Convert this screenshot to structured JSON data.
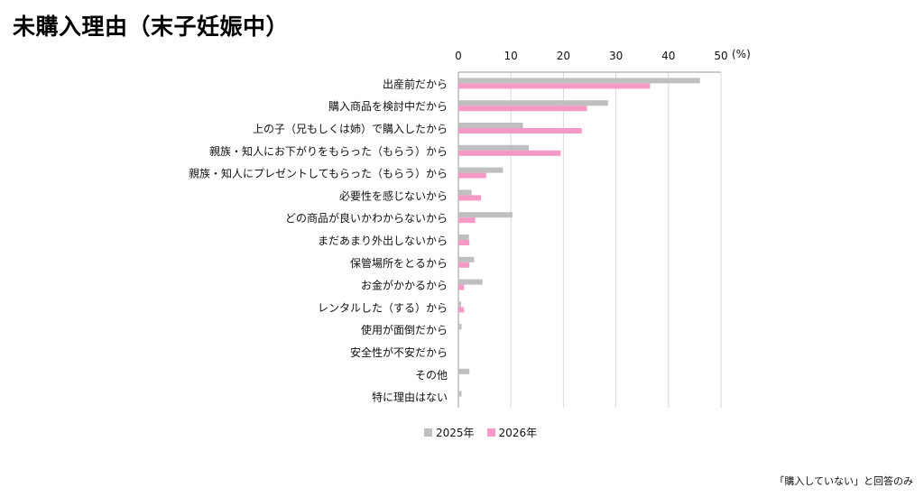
{
  "title": "未購入理由（末子妊娠中）",
  "footnote": "「購入していない」と回答のみ",
  "colors": {
    "series_2025": "#bfbfbf",
    "series_2026": "#f59ac6",
    "axis": "#999999",
    "grid": "#d9d9d9"
  },
  "chart_data": {
    "type": "bar",
    "orientation": "horizontal",
    "unit_label": "(%)",
    "xlim": [
      0,
      50
    ],
    "ticks": [
      0,
      10,
      20,
      30,
      40,
      50
    ],
    "grid": true,
    "legend": "bottom",
    "categories": [
      "出産前だから",
      "購入商品を検討中だから",
      "上の子（兄もしくは姉）で購入したから",
      "親族・知人にお下がりをもらった（もらう）から",
      "親族・知人にプレゼントしてもらった（もらう）から",
      "必要性を感じないから",
      "どの商品が良いかわからないから",
      "まだあまり外出しないから",
      "保管場所をとるから",
      "お金がかかるから",
      "レンタルした（する）から",
      "使用が面倒だから",
      "安全性が不安だから",
      "その他",
      "特に理由はない"
    ],
    "series": [
      {
        "name": "2025年",
        "values": [
          46,
          28.5,
          12.3,
          13.4,
          8.5,
          2.5,
          10.3,
          2.0,
          3.0,
          4.6,
          0.5,
          0.6,
          0,
          2.1,
          0.6
        ]
      },
      {
        "name": "2026年",
        "values": [
          36.5,
          24.5,
          23.5,
          19.5,
          5.3,
          4.3,
          3.2,
          2.1,
          2.1,
          1.1,
          1.1,
          0,
          0,
          0,
          0
        ]
      }
    ]
  }
}
